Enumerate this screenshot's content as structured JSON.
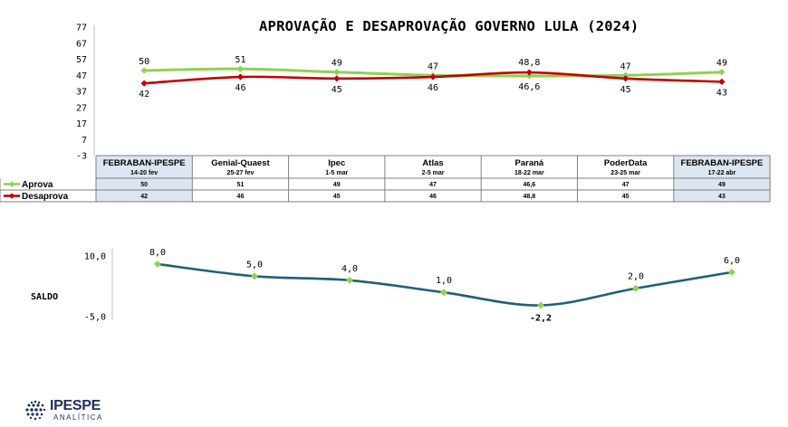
{
  "chart_data": [
    {
      "type": "line",
      "title": "APROVAÇÃO E DESAPROVAÇÃO GOVERNO LULA (2024)",
      "categories": [
        "FEBRABAN-IPESPE",
        "Genial-Quaest",
        "Ipec",
        "Atlas",
        "Paraná",
        "PoderData",
        "FEBRABAN-IPESPE"
      ],
      "category_dates": [
        "14-20 fev",
        "25-27 fev",
        "1-5 mar",
        "2-5 mar",
        "18-22 mar",
        "23-25 mar",
        "17-22 abr"
      ],
      "series": [
        {
          "name": "Aprova",
          "color": "#8fd14f",
          "values": [
            50,
            51,
            49,
            47,
            46.6,
            47,
            49
          ],
          "value_labels": [
            "50",
            "51",
            "49",
            "47",
            "46,6",
            "47",
            "49"
          ]
        },
        {
          "name": "Desaprova",
          "color": "#c00000",
          "values": [
            42,
            46,
            45,
            46,
            48.8,
            45,
            43
          ],
          "value_labels": [
            "42",
            "46",
            "45",
            "46",
            "48,8",
            "45",
            "43"
          ]
        }
      ],
      "table_values": {
        "Aprova": [
          "50",
          "51",
          "49",
          "47",
          "46,6",
          "47",
          "49"
        ],
        "Desaprova": [
          "42",
          "46",
          "45",
          "46",
          "48,8",
          "45",
          "43"
        ]
      },
      "yticks": [
        "77",
        "67",
        "57",
        "47",
        "37",
        "27",
        "17",
        "7",
        "-3"
      ],
      "ylim": [
        -3,
        77
      ],
      "grid": false,
      "legend": "data-table"
    },
    {
      "type": "line",
      "title": "",
      "ylabel": "SALDO",
      "series": [
        {
          "name": "",
          "color": "#1f5f7a",
          "values": [
            8.0,
            5.0,
            4.0,
            1.0,
            -2.2,
            2.0,
            6.0
          ],
          "value_labels": [
            "8,0",
            "5,0",
            "4,0",
            "1,0",
            "-2,2",
            "2,0",
            "6,0"
          ]
        }
      ],
      "yticks": [
        "10,0",
        "-5,0"
      ],
      "ylim": [
        -5,
        10
      ],
      "negative_label_color": "#c00000",
      "marker_color": "#92d050",
      "grid": false
    }
  ],
  "logo": {
    "name": "IPESPE",
    "sub": "ANALÍTICA",
    "color": "#1e2f5e"
  }
}
